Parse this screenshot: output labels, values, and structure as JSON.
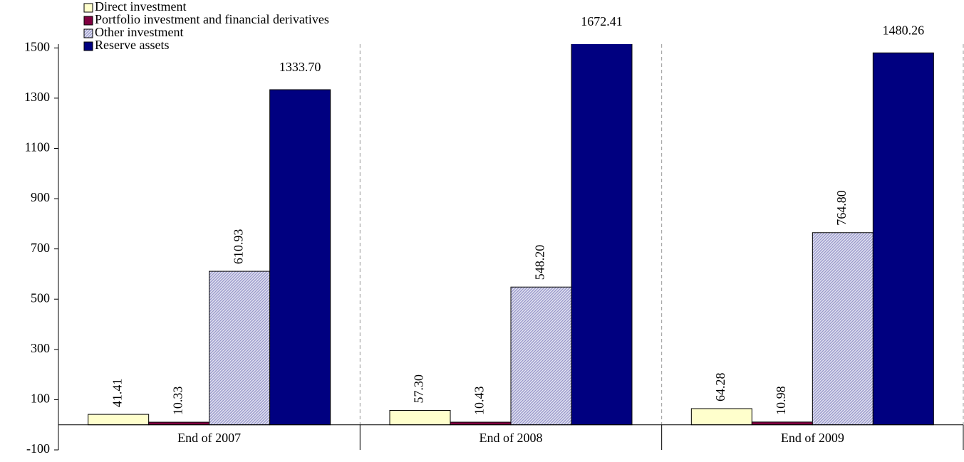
{
  "chart_data": {
    "type": "bar",
    "categories": [
      "End of 2007",
      "End of 2008",
      "End of 2009"
    ],
    "series": [
      {
        "name": "Direct investment",
        "color": "#ffffcc",
        "values": [
          41.41,
          57.3,
          64.28
        ],
        "value_labels": [
          "41.41",
          "57.30",
          "64.28"
        ]
      },
      {
        "name": "Portfolio investment and financial derivatives",
        "color": "#800040",
        "values": [
          10.33,
          10.43,
          10.98
        ],
        "value_labels": [
          "10.33",
          "10.43",
          "10.98"
        ]
      },
      {
        "name": "Other investment",
        "color": "#9999cc",
        "pattern": "hatch",
        "values": [
          610.93,
          548.2,
          764.8
        ],
        "value_labels": [
          "610.93",
          "548.20",
          "764.80"
        ]
      },
      {
        "name": "Reserve assets",
        "color": "#000080",
        "values": [
          1333.7,
          1672.41,
          1480.26
        ],
        "value_labels": [
          "1333.70",
          "1672.41",
          "1480.26"
        ]
      }
    ],
    "ylim": [
      -100,
      1515
    ],
    "yticks": [
      -100,
      100,
      300,
      500,
      700,
      900,
      1100,
      1300,
      1500
    ],
    "grid": false,
    "legend": "top-left"
  }
}
